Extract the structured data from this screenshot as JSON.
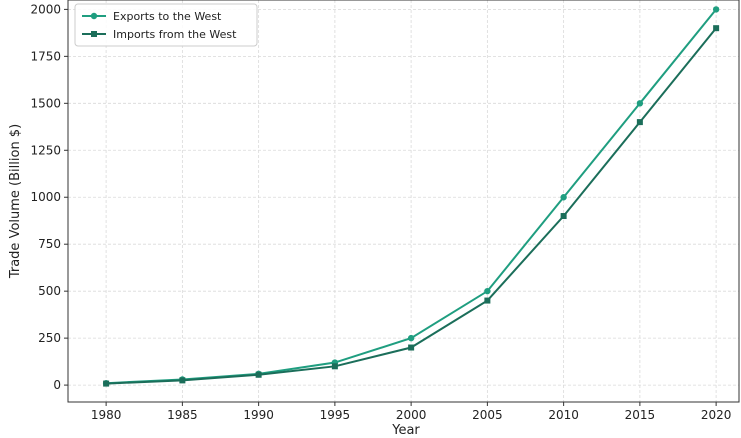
{
  "chart_data": {
    "type": "line",
    "x": [
      1980,
      1985,
      1990,
      1995,
      2000,
      2005,
      2010,
      2015,
      2020
    ],
    "series": [
      {
        "name": "Exports to the West",
        "values": [
          10,
          30,
          60,
          120,
          250,
          500,
          1000,
          1500,
          2000
        ],
        "color": "#1f9e80",
        "marker": "circle"
      },
      {
        "name": "Imports from the West",
        "values": [
          8,
          25,
          55,
          100,
          200,
          450,
          900,
          1400,
          1900
        ],
        "color": "#1b6e5a",
        "marker": "square"
      }
    ],
    "xlabel": "Year",
    "ylabel": "Trade Volume (Billion $)",
    "xlim": [
      1977.5,
      2021.5
    ],
    "ylim": [
      -90,
      2050
    ],
    "xticks": [
      1980,
      1985,
      1990,
      1995,
      2000,
      2005,
      2010,
      2015,
      2020
    ],
    "yticks": [
      0,
      250,
      500,
      750,
      1000,
      1250,
      1500,
      1750,
      2000
    ],
    "grid": true,
    "legend": "top-left"
  }
}
